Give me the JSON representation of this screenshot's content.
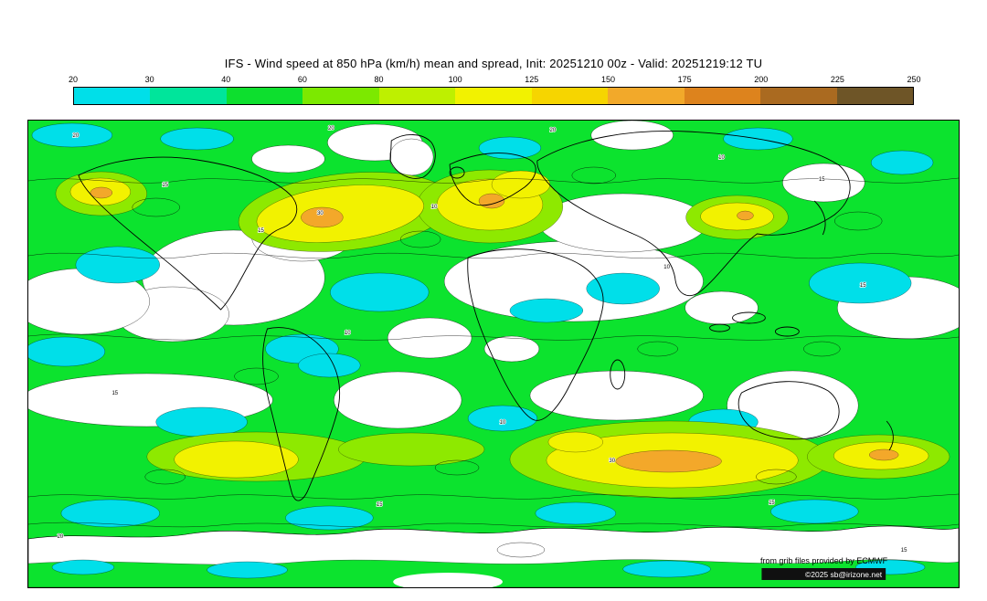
{
  "header": {
    "title": "IFS - Wind speed at 850 hPa (km/h) mean and spread, Init: 20251210 00z - Valid: 20251219:12 TU"
  },
  "chart_data": {
    "type": "heatmap",
    "title": "IFS - Wind speed at 850 hPa (km/h) mean and spread, Init: 20251210 00z - Valid: 20251219:12 TU",
    "model": "IFS",
    "variable": "Wind speed at 850 hPa",
    "units": "km/h",
    "statistic": "mean and spread",
    "init": "20251210 00z",
    "valid": "20251219:12 TU",
    "projection": "global equirectangular world map",
    "legend_position": "top",
    "colorbar": {
      "tick_labels": [
        "20",
        "30",
        "40",
        "60",
        "80",
        "100",
        "125",
        "150",
        "175",
        "200",
        "225",
        "250"
      ],
      "segment_colors": [
        "#00dfe9",
        "#00e59b",
        "#0ddf2e",
        "#7ce900",
        "#bef000",
        "#f2f200",
        "#f6d500",
        "#f2a92a",
        "#dd831d",
        "#aa6a20",
        "#6e5527"
      ]
    },
    "fill_colors": {
      "calm_below_20": "#ffffff",
      "cyan_20_30": "#00dfe9",
      "green_40_60": "#0ce32e",
      "yellowgreen_60_100": "#8ee900",
      "yellow_100_150": "#f2f200",
      "orange_150_200": "#f3a82a"
    },
    "spread_contour_labels": [
      "10",
      "15",
      "20",
      "30"
    ],
    "notable_features": [
      "North Pacific jet maximum with orange core (~150-175 km/h)",
      "North Atlantic / Europe jet band (~100-150 km/h)",
      "East Asia jet patch (~100-150 km/h)",
      "Southern Ocean storm-track yellow band with orange core over south Indian Ocean",
      "White calm zones (<20 km/h) over subtropical highs, continental interiors and Antarctica"
    ]
  },
  "map": {
    "contour_labels": {
      "v10": "10",
      "v15": "15",
      "v20": "20",
      "v30": "30"
    },
    "attribution": "from grib files provided by ECMWF",
    "copyright": "©2025 sb@irizone.net"
  }
}
